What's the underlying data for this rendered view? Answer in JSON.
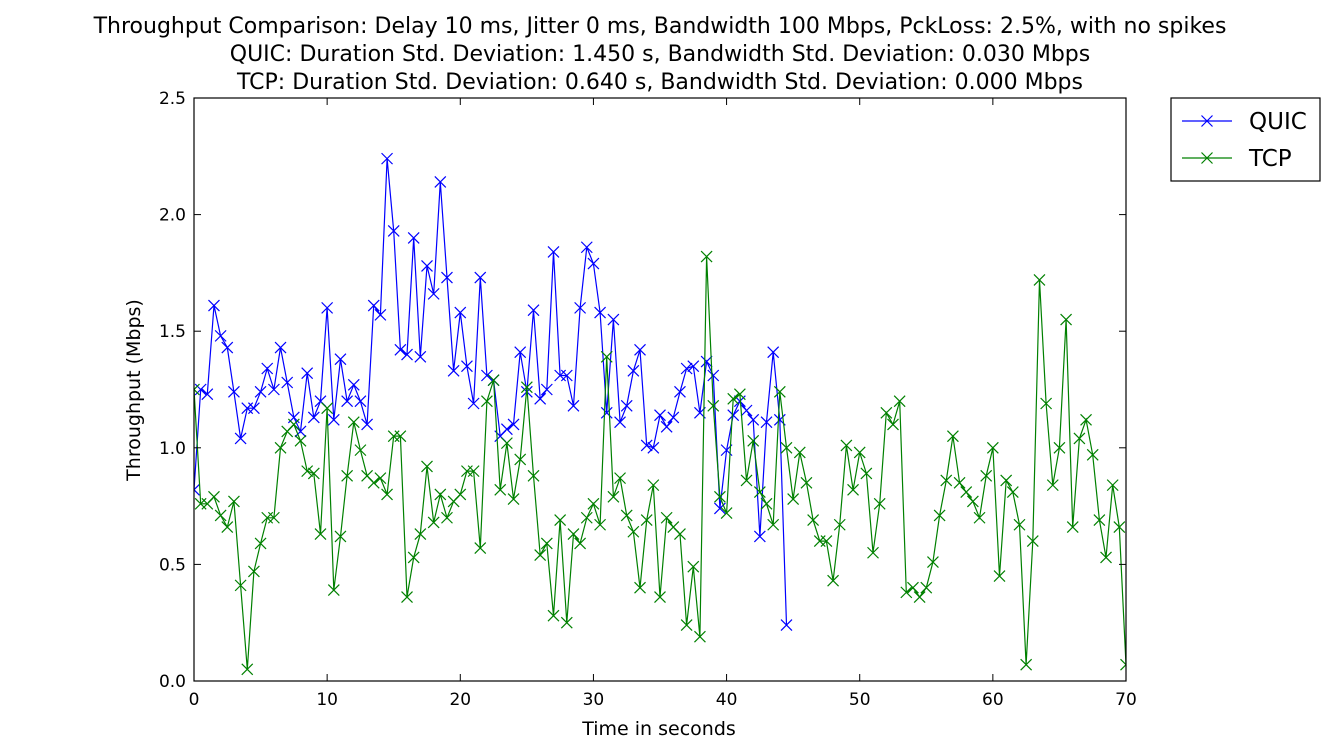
{
  "chart_data": {
    "type": "line",
    "title": [
      "Throughput Comparison: Delay 10 ms, Jitter 0 ms, Bandwidth 100 Mbps, PckLoss: 2.5%, with no spikes",
      "QUIC: Duration Std. Deviation: 1.450 s, Bandwidth Std. Deviation: 0.030 Mbps",
      "TCP: Duration Std. Deviation: 0.640 s, Bandwidth Std. Deviation: 0.000 Mbps"
    ],
    "xlabel": "Time in seconds",
    "ylabel": "Throughput (Mbps)",
    "xlim": [
      0,
      70
    ],
    "ylim": [
      0,
      2.5
    ],
    "xticks": [
      0,
      10,
      20,
      30,
      40,
      50,
      60,
      70
    ],
    "yticks": [
      0.0,
      0.5,
      1.0,
      1.5,
      2.0,
      2.5
    ],
    "xtick_labels": [
      "0",
      "10",
      "20",
      "30",
      "40",
      "50",
      "60",
      "70"
    ],
    "ytick_labels": [
      "0.0",
      "0.5",
      "1.0",
      "1.5",
      "2.0",
      "2.5"
    ],
    "grid": false,
    "legend_position": "outside-top-right",
    "marker": "x",
    "series": [
      {
        "name": "QUIC",
        "color": "#0000ff",
        "points": [
          [
            0.0,
            0.82
          ],
          [
            0.5,
            1.25
          ],
          [
            1.0,
            1.23
          ],
          [
            1.5,
            1.61
          ],
          [
            2.0,
            1.48
          ],
          [
            2.5,
            1.43
          ],
          [
            3.0,
            1.24
          ],
          [
            3.5,
            1.04
          ],
          [
            4.0,
            1.17
          ],
          [
            4.5,
            1.17
          ],
          [
            5.0,
            1.24
          ],
          [
            5.5,
            1.34
          ],
          [
            6.0,
            1.25
          ],
          [
            6.5,
            1.43
          ],
          [
            7.0,
            1.28
          ],
          [
            7.5,
            1.13
          ],
          [
            8.0,
            1.07
          ],
          [
            8.5,
            1.32
          ],
          [
            9.0,
            1.13
          ],
          [
            9.5,
            1.2
          ],
          [
            10.0,
            1.6
          ],
          [
            10.5,
            1.12
          ],
          [
            11.0,
            1.38
          ],
          [
            11.5,
            1.2
          ],
          [
            12.0,
            1.27
          ],
          [
            12.5,
            1.2
          ],
          [
            13.0,
            1.1
          ],
          [
            13.5,
            1.61
          ],
          [
            14.0,
            1.57
          ],
          [
            14.5,
            2.24
          ],
          [
            15.0,
            1.93
          ],
          [
            15.5,
            1.42
          ],
          [
            16.0,
            1.4
          ],
          [
            16.5,
            1.9
          ],
          [
            17.0,
            1.39
          ],
          [
            17.5,
            1.78
          ],
          [
            18.0,
            1.66
          ],
          [
            18.5,
            2.14
          ],
          [
            19.0,
            1.73
          ],
          [
            19.5,
            1.33
          ],
          [
            20.0,
            1.58
          ],
          [
            20.5,
            1.35
          ],
          [
            21.0,
            1.19
          ],
          [
            21.5,
            1.73
          ],
          [
            22.0,
            1.31
          ],
          [
            22.5,
            1.29
          ],
          [
            23.0,
            1.05
          ],
          [
            23.5,
            1.08
          ],
          [
            24.0,
            1.1
          ],
          [
            24.5,
            1.41
          ],
          [
            25.0,
            1.24
          ],
          [
            25.5,
            1.59
          ],
          [
            26.0,
            1.21
          ],
          [
            26.5,
            1.25
          ],
          [
            27.0,
            1.84
          ],
          [
            27.5,
            1.31
          ],
          [
            28.0,
            1.31
          ],
          [
            28.5,
            1.18
          ],
          [
            29.0,
            1.6
          ],
          [
            29.5,
            1.86
          ],
          [
            30.0,
            1.79
          ],
          [
            30.5,
            1.58
          ],
          [
            31.0,
            1.15
          ],
          [
            31.5,
            1.55
          ],
          [
            32.0,
            1.11
          ],
          [
            32.5,
            1.18
          ],
          [
            33.0,
            1.33
          ],
          [
            33.5,
            1.42
          ],
          [
            34.0,
            1.01
          ],
          [
            34.5,
            1.0
          ],
          [
            35.0,
            1.14
          ],
          [
            35.5,
            1.09
          ],
          [
            36.0,
            1.13
          ],
          [
            36.5,
            1.24
          ],
          [
            37.0,
            1.34
          ],
          [
            37.5,
            1.35
          ],
          [
            38.0,
            1.15
          ],
          [
            38.5,
            1.37
          ],
          [
            39.0,
            1.31
          ],
          [
            39.5,
            0.74
          ],
          [
            40.0,
            0.99
          ],
          [
            40.5,
            1.14
          ],
          [
            41.0,
            1.2
          ],
          [
            41.5,
            1.16
          ],
          [
            42.0,
            1.12
          ],
          [
            42.5,
            0.62
          ],
          [
            43.0,
            1.11
          ],
          [
            43.5,
            1.41
          ],
          [
            44.0,
            1.12
          ],
          [
            44.5,
            0.24
          ]
        ]
      },
      {
        "name": "TCP",
        "color": "#008000",
        "points": [
          [
            0.0,
            1.25
          ],
          [
            0.5,
            0.76
          ],
          [
            1.0,
            0.76
          ],
          [
            1.5,
            0.79
          ],
          [
            2.0,
            0.71
          ],
          [
            2.5,
            0.66
          ],
          [
            3.0,
            0.77
          ],
          [
            3.5,
            0.41
          ],
          [
            4.0,
            0.05
          ],
          [
            4.5,
            0.47
          ],
          [
            5.0,
            0.59
          ],
          [
            5.5,
            0.7
          ],
          [
            6.0,
            0.7
          ],
          [
            6.5,
            1.0
          ],
          [
            7.0,
            1.07
          ],
          [
            7.5,
            1.1
          ],
          [
            8.0,
            1.03
          ],
          [
            8.5,
            0.9
          ],
          [
            9.0,
            0.89
          ],
          [
            9.5,
            0.63
          ],
          [
            10.0,
            1.17
          ],
          [
            10.5,
            0.39
          ],
          [
            11.0,
            0.62
          ],
          [
            11.5,
            0.88
          ],
          [
            12.0,
            1.11
          ],
          [
            12.5,
            0.99
          ],
          [
            13.0,
            0.88
          ],
          [
            13.5,
            0.85
          ],
          [
            14.0,
            0.87
          ],
          [
            14.5,
            0.8
          ],
          [
            15.0,
            1.05
          ],
          [
            15.5,
            1.05
          ],
          [
            16.0,
            0.36
          ],
          [
            16.5,
            0.53
          ],
          [
            17.0,
            0.63
          ],
          [
            17.5,
            0.92
          ],
          [
            18.0,
            0.68
          ],
          [
            18.5,
            0.8
          ],
          [
            19.0,
            0.7
          ],
          [
            19.5,
            0.77
          ],
          [
            20.0,
            0.8
          ],
          [
            20.5,
            0.9
          ],
          [
            21.0,
            0.9
          ],
          [
            21.5,
            0.57
          ],
          [
            22.0,
            1.2
          ],
          [
            22.5,
            1.29
          ],
          [
            23.0,
            0.82
          ],
          [
            23.5,
            1.02
          ],
          [
            24.0,
            0.78
          ],
          [
            24.5,
            0.95
          ],
          [
            25.0,
            1.26
          ],
          [
            25.5,
            0.88
          ],
          [
            26.0,
            0.54
          ],
          [
            26.5,
            0.59
          ],
          [
            27.0,
            0.28
          ],
          [
            27.5,
            0.69
          ],
          [
            28.0,
            0.25
          ],
          [
            28.5,
            0.63
          ],
          [
            29.0,
            0.59
          ],
          [
            29.5,
            0.7
          ],
          [
            30.0,
            0.76
          ],
          [
            30.5,
            0.67
          ],
          [
            31.0,
            1.39
          ],
          [
            31.5,
            0.79
          ],
          [
            32.0,
            0.87
          ],
          [
            32.5,
            0.71
          ],
          [
            33.0,
            0.64
          ],
          [
            33.5,
            0.4
          ],
          [
            34.0,
            0.69
          ],
          [
            34.5,
            0.84
          ],
          [
            35.0,
            0.36
          ],
          [
            35.5,
            0.7
          ],
          [
            36.0,
            0.66
          ],
          [
            36.5,
            0.63
          ],
          [
            37.0,
            0.24
          ],
          [
            37.5,
            0.49
          ],
          [
            38.0,
            0.19
          ],
          [
            38.5,
            1.82
          ],
          [
            39.0,
            1.18
          ],
          [
            39.5,
            0.79
          ],
          [
            40.0,
            0.72
          ],
          [
            40.5,
            1.21
          ],
          [
            41.0,
            1.23
          ],
          [
            41.5,
            0.86
          ],
          [
            42.0,
            1.03
          ],
          [
            42.5,
            0.81
          ],
          [
            43.0,
            0.76
          ],
          [
            43.5,
            0.67
          ],
          [
            44.0,
            1.24
          ],
          [
            44.5,
            1.0
          ],
          [
            45.0,
            0.78
          ],
          [
            45.5,
            0.98
          ],
          [
            46.0,
            0.85
          ],
          [
            46.5,
            0.69
          ],
          [
            47.0,
            0.6
          ],
          [
            47.5,
            0.6
          ],
          [
            48.0,
            0.43
          ],
          [
            48.5,
            0.67
          ],
          [
            49.0,
            1.01
          ],
          [
            49.5,
            0.82
          ],
          [
            50.0,
            0.98
          ],
          [
            50.5,
            0.89
          ],
          [
            51.0,
            0.55
          ],
          [
            51.5,
            0.76
          ],
          [
            52.0,
            1.15
          ],
          [
            52.5,
            1.1
          ],
          [
            53.0,
            1.2
          ],
          [
            53.5,
            0.38
          ],
          [
            54.0,
            0.4
          ],
          [
            54.5,
            0.36
          ],
          [
            55.0,
            0.4
          ],
          [
            55.5,
            0.51
          ],
          [
            56.0,
            0.71
          ],
          [
            56.5,
            0.86
          ],
          [
            57.0,
            1.05
          ],
          [
            57.5,
            0.85
          ],
          [
            58.0,
            0.81
          ],
          [
            58.5,
            0.77
          ],
          [
            59.0,
            0.7
          ],
          [
            59.5,
            0.88
          ],
          [
            60.0,
            1.0
          ],
          [
            60.5,
            0.45
          ],
          [
            61.0,
            0.86
          ],
          [
            61.5,
            0.81
          ],
          [
            62.0,
            0.67
          ],
          [
            62.5,
            0.07
          ],
          [
            63.0,
            0.6
          ],
          [
            63.5,
            1.72
          ],
          [
            64.0,
            1.19
          ],
          [
            64.5,
            0.84
          ],
          [
            65.0,
            1.0
          ],
          [
            65.5,
            1.55
          ],
          [
            66.0,
            0.66
          ],
          [
            66.5,
            1.04
          ],
          [
            67.0,
            1.12
          ],
          [
            67.5,
            0.97
          ],
          [
            68.0,
            0.69
          ],
          [
            68.5,
            0.53
          ],
          [
            69.0,
            0.84
          ],
          [
            69.5,
            0.66
          ],
          [
            70.0,
            0.07
          ]
        ]
      }
    ]
  }
}
